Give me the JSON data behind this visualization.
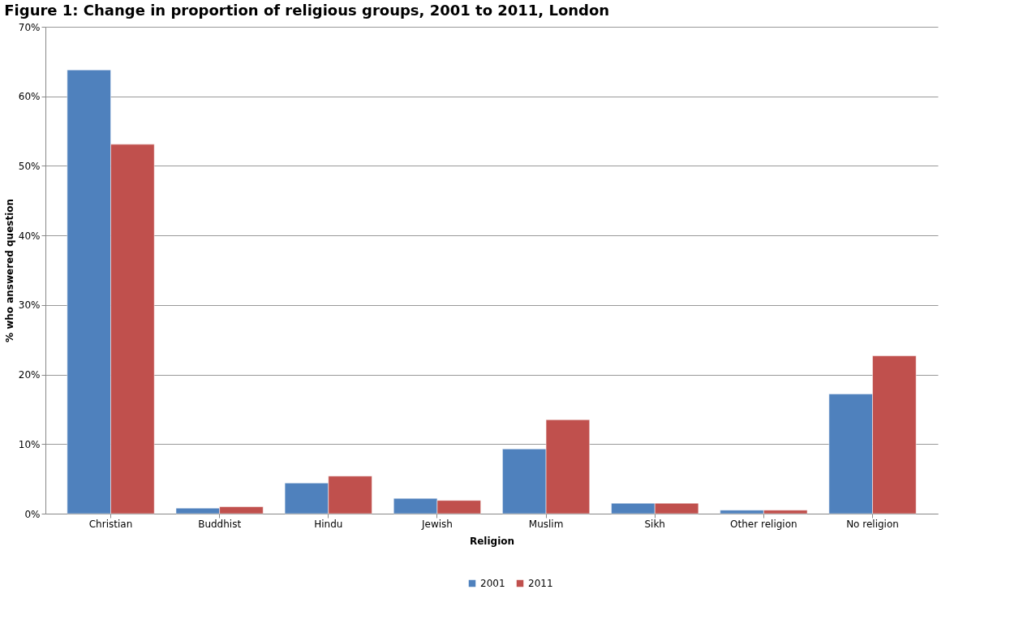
{
  "chart_data": {
    "type": "bar",
    "title": "Figure 1: Change in proportion of religious groups, 2001 to 2011, London",
    "xlabel": "Religion",
    "ylabel": "% who answered question",
    "categories": [
      "Christian",
      "Buddhist",
      "Hindu",
      "Jewish",
      "Muslim",
      "Sikh",
      "Other religion",
      "No religion"
    ],
    "series": [
      {
        "name": "2001",
        "color": "#4f81bd",
        "values": [
          63.8,
          0.8,
          4.4,
          2.2,
          9.3,
          1.5,
          0.5,
          17.2
        ]
      },
      {
        "name": "2011",
        "color": "#c0504d",
        "values": [
          53.1,
          1.0,
          5.4,
          1.9,
          13.5,
          1.5,
          0.5,
          22.7
        ]
      }
    ],
    "ylim": [
      0,
      70
    ],
    "yticks": [
      {
        "value": 0,
        "label": "0%"
      },
      {
        "value": 10,
        "label": "10%"
      },
      {
        "value": 20,
        "label": "20%"
      },
      {
        "value": 30,
        "label": "30%"
      },
      {
        "value": 40,
        "label": "40%"
      },
      {
        "value": 50,
        "label": "50%"
      },
      {
        "value": 60,
        "label": "60%"
      },
      {
        "value": 70,
        "label": "70%"
      }
    ],
    "grid": "y",
    "legend": "bottom"
  }
}
